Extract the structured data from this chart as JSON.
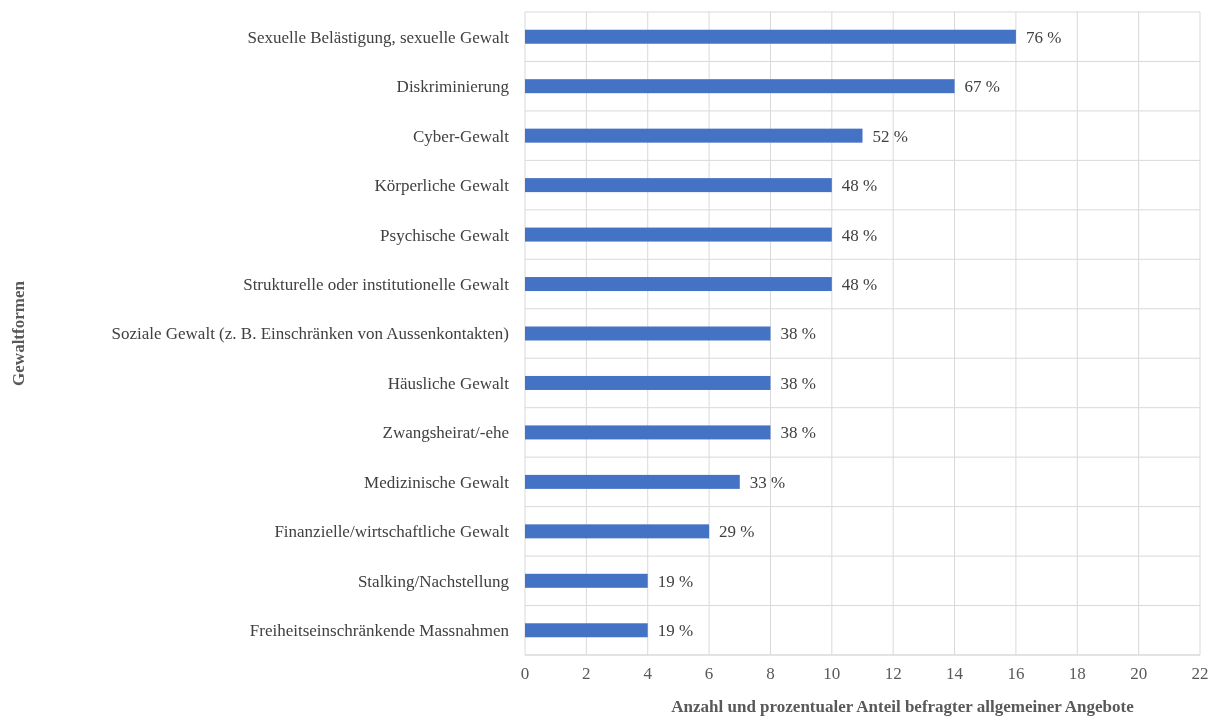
{
  "chart_data": {
    "type": "bar",
    "orientation": "horizontal",
    "xlabel": "Anzahl und prozentualer Anteil befragter allgemeiner Angebote",
    "ylabel": "Gewaltformen",
    "categories": [
      "Sexuelle Belästigung, sexuelle Gewalt",
      "Diskriminierung",
      "Cyber-Gewalt",
      "Körperliche Gewalt",
      "Psychische Gewalt",
      "Strukturelle oder institutionelle Gewalt",
      "Soziale Gewalt (z. B. Einschränken von Aussenkontakten)",
      "Häusliche Gewalt",
      "Zwangsheirat/-ehe",
      "Medizinische Gewalt",
      "Finanzielle/wirtschaftliche Gewalt",
      "Stalking/Nachstellung",
      "Freiheitseinschränkende Massnahmen"
    ],
    "values": [
      16,
      14,
      11,
      10,
      10,
      10,
      8,
      8,
      8,
      7,
      6,
      4,
      4
    ],
    "annotations": [
      {
        "text": "76 %",
        "x": 16,
        "y": "Sexuelle Belästigung, sexuelle Gewalt"
      },
      {
        "text": "67 %",
        "x": 14,
        "y": "Diskriminierung"
      },
      {
        "text": "52 %",
        "x": 11,
        "y": "Cyber-Gewalt"
      },
      {
        "text": "48 %",
        "x": 10,
        "y": "Körperliche Gewalt"
      },
      {
        "text": "48 %",
        "x": 10,
        "y": "Psychische Gewalt"
      },
      {
        "text": "48 %",
        "x": 10,
        "y": "Strukturelle oder institutionelle Gewalt"
      },
      {
        "text": "38 %",
        "x": 8,
        "y": "Soziale Gewalt (z. B. Einschränken von Aussenkontakten)"
      },
      {
        "text": "38 %",
        "x": 8,
        "y": "Häusliche Gewalt"
      },
      {
        "text": "38 %",
        "x": 8,
        "y": "Zwangsheirat/-ehe"
      },
      {
        "text": "33 %",
        "x": 7,
        "y": "Medizinische Gewalt"
      },
      {
        "text": "29 %",
        "x": 6,
        "y": "Finanzielle/wirtschaftliche Gewalt"
      },
      {
        "text": "19 %",
        "x": 4,
        "y": "Stalking/Nachstellung"
      },
      {
        "text": "19 %",
        "x": 4,
        "y": "Freiheitseinschränkende Massnahmen"
      }
    ],
    "color": "#4472c4",
    "xlim": [
      0,
      22
    ],
    "xticks": [
      0,
      2,
      4,
      6,
      8,
      10,
      12,
      14,
      16,
      18,
      20,
      22
    ],
    "grid": true
  }
}
